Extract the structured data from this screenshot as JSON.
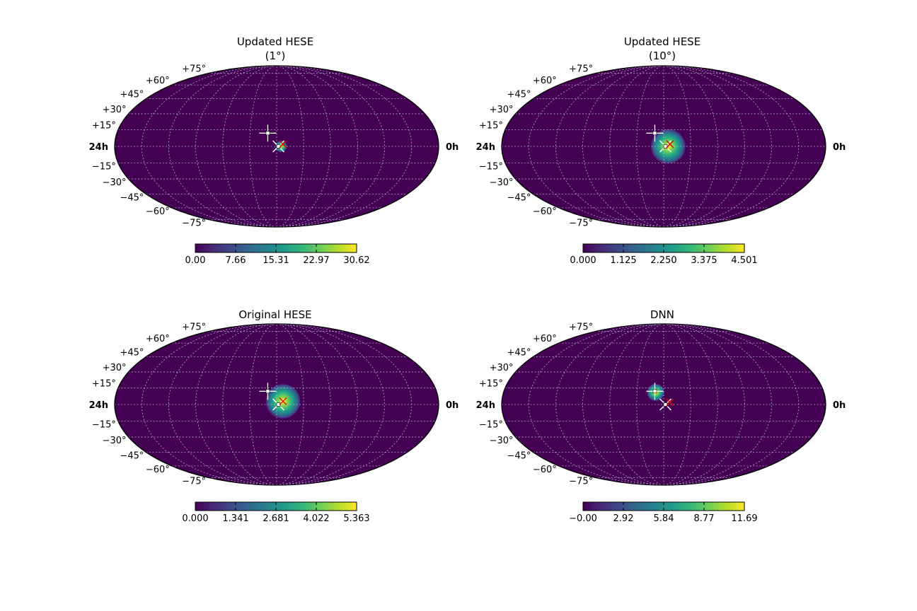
{
  "chart_data": [
    {
      "type": "heatmap",
      "projection": "mollweide",
      "title": "Updated HESE",
      "subtitle": "(1°)",
      "ra_labels": [
        "24h",
        "0h"
      ],
      "lat_labels": [
        "+75°",
        "+60°",
        "+45°",
        "+30°",
        "+15°",
        "−15°",
        "−30°",
        "−45°",
        "−60°",
        "−75°"
      ],
      "grid": true,
      "colormap": "viridis",
      "colorbar": {
        "ticks": [
          "0.00",
          "7.66",
          "15.31",
          "22.97",
          "30.62"
        ],
        "range": [
          0,
          30.62
        ]
      },
      "hotspot": {
        "ra_deg": 175,
        "dec_deg": 0,
        "peak": 30.62,
        "sigma_deg": 3
      },
      "markers": [
        {
          "kind": "white-cross",
          "ra_deg": 190,
          "dec_deg": 12
        },
        {
          "kind": "white-x",
          "ra_deg": 178,
          "dec_deg": 0
        },
        {
          "kind": "red-x",
          "ra_deg": 173,
          "dec_deg": 2
        }
      ]
    },
    {
      "type": "heatmap",
      "projection": "mollweide",
      "title": "Updated HESE",
      "subtitle": "(10°)",
      "ra_labels": [
        "24h",
        "0h"
      ],
      "lat_labels": [
        "+75°",
        "+60°",
        "+45°",
        "+30°",
        "+15°",
        "−15°",
        "−30°",
        "−45°",
        "−60°",
        "−75°"
      ],
      "grid": true,
      "colormap": "viridis",
      "colorbar": {
        "ticks": [
          "0.000",
          "1.125",
          "2.250",
          "3.375",
          "4.501"
        ],
        "range": [
          0,
          4.501
        ]
      },
      "hotspot": {
        "ra_deg": 175,
        "dec_deg": 0,
        "peak": 4.501,
        "sigma_deg": 9
      },
      "markers": [
        {
          "kind": "white-cross",
          "ra_deg": 190,
          "dec_deg": 12
        },
        {
          "kind": "white-x",
          "ra_deg": 178,
          "dec_deg": 0
        },
        {
          "kind": "red-x",
          "ra_deg": 173,
          "dec_deg": 2
        }
      ]
    },
    {
      "type": "heatmap",
      "projection": "mollweide",
      "title": "Original HESE",
      "subtitle": "",
      "ra_labels": [
        "24h",
        "0h"
      ],
      "lat_labels": [
        "+75°",
        "+60°",
        "+45°",
        "+30°",
        "+15°",
        "−15°",
        "−30°",
        "−45°",
        "−60°",
        "−75°"
      ],
      "grid": true,
      "colormap": "viridis",
      "colorbar": {
        "ticks": [
          "0.000",
          "1.341",
          "2.681",
          "4.022",
          "5.363"
        ],
        "range": [
          0,
          5.363
        ]
      },
      "hotspot": {
        "ra_deg": 173,
        "dec_deg": 3,
        "peak": 5.363,
        "sigma_deg": 9
      },
      "markers": [
        {
          "kind": "white-cross",
          "ra_deg": 190,
          "dec_deg": 12
        },
        {
          "kind": "white-x",
          "ra_deg": 178,
          "dec_deg": 0
        },
        {
          "kind": "red-x",
          "ra_deg": 173,
          "dec_deg": 3
        }
      ]
    },
    {
      "type": "heatmap",
      "projection": "mollweide",
      "title": "DNN",
      "subtitle": "",
      "ra_labels": [
        "24h",
        "0h"
      ],
      "lat_labels": [
        "+75°",
        "+60°",
        "+45°",
        "+30°",
        "+15°",
        "−15°",
        "−30°",
        "−45°",
        "−60°",
        "−75°"
      ],
      "grid": true,
      "colormap": "viridis",
      "colorbar": {
        "ticks": [
          "−0.00",
          "2.92",
          "5.84",
          "8.77",
          "11.69"
        ],
        "range": [
          0,
          11.69
        ]
      },
      "hotspot": {
        "ra_deg": 189,
        "dec_deg": 11,
        "peak": 11.69,
        "sigma_deg": 4.5
      },
      "markers": [
        {
          "kind": "white-cross",
          "ra_deg": 190,
          "dec_deg": 12
        },
        {
          "kind": "white-x",
          "ra_deg": 178,
          "dec_deg": 0
        },
        {
          "kind": "red-x",
          "ra_deg": 173,
          "dec_deg": 2
        }
      ]
    }
  ]
}
